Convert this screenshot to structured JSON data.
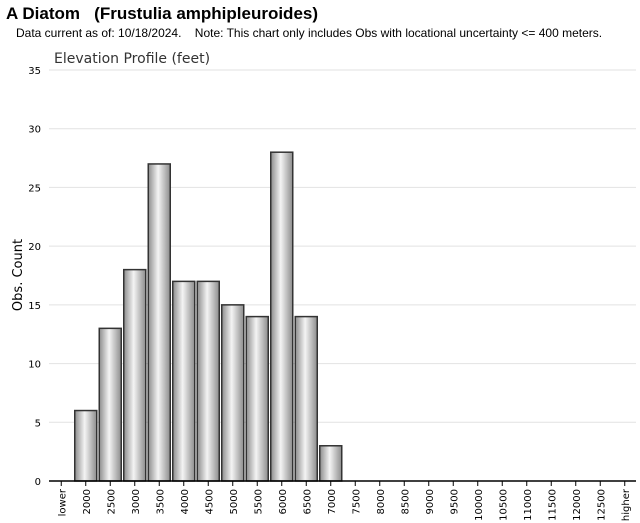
{
  "header": {
    "title": "A Diatom   (Frustulia amphipleuroides)",
    "subtitle": "Data current as of: 10/18/2024.    Note: This chart only includes Obs with locational uncertainty <= 400 meters."
  },
  "chart_data": {
    "type": "bar",
    "title": "Elevation Profile (feet)",
    "xlabel": "",
    "ylabel": "Obs. Count",
    "ylim": [
      0,
      35
    ],
    "yticks": [
      0,
      5,
      10,
      15,
      20,
      25,
      30,
      35
    ],
    "grid": true,
    "categories": [
      "lower",
      "2000",
      "2500",
      "3000",
      "3500",
      "4000",
      "4500",
      "5000",
      "5500",
      "6000",
      "6500",
      "7000",
      "7500",
      "8000",
      "8500",
      "9000",
      "9500",
      "10000",
      "10500",
      "11000",
      "11500",
      "12000",
      "12500",
      "higher"
    ],
    "values": [
      0,
      6,
      13,
      18,
      27,
      17,
      17,
      15,
      14,
      28,
      14,
      3,
      0,
      0,
      0,
      0,
      0,
      0,
      0,
      0,
      0,
      0,
      0,
      0
    ],
    "colors": {
      "bar_edge": "#333333",
      "bar_light": "#f4f4f4",
      "bar_dark": "#8c8c8c",
      "grid": "#e2e2e2",
      "axis": "#000000"
    }
  }
}
